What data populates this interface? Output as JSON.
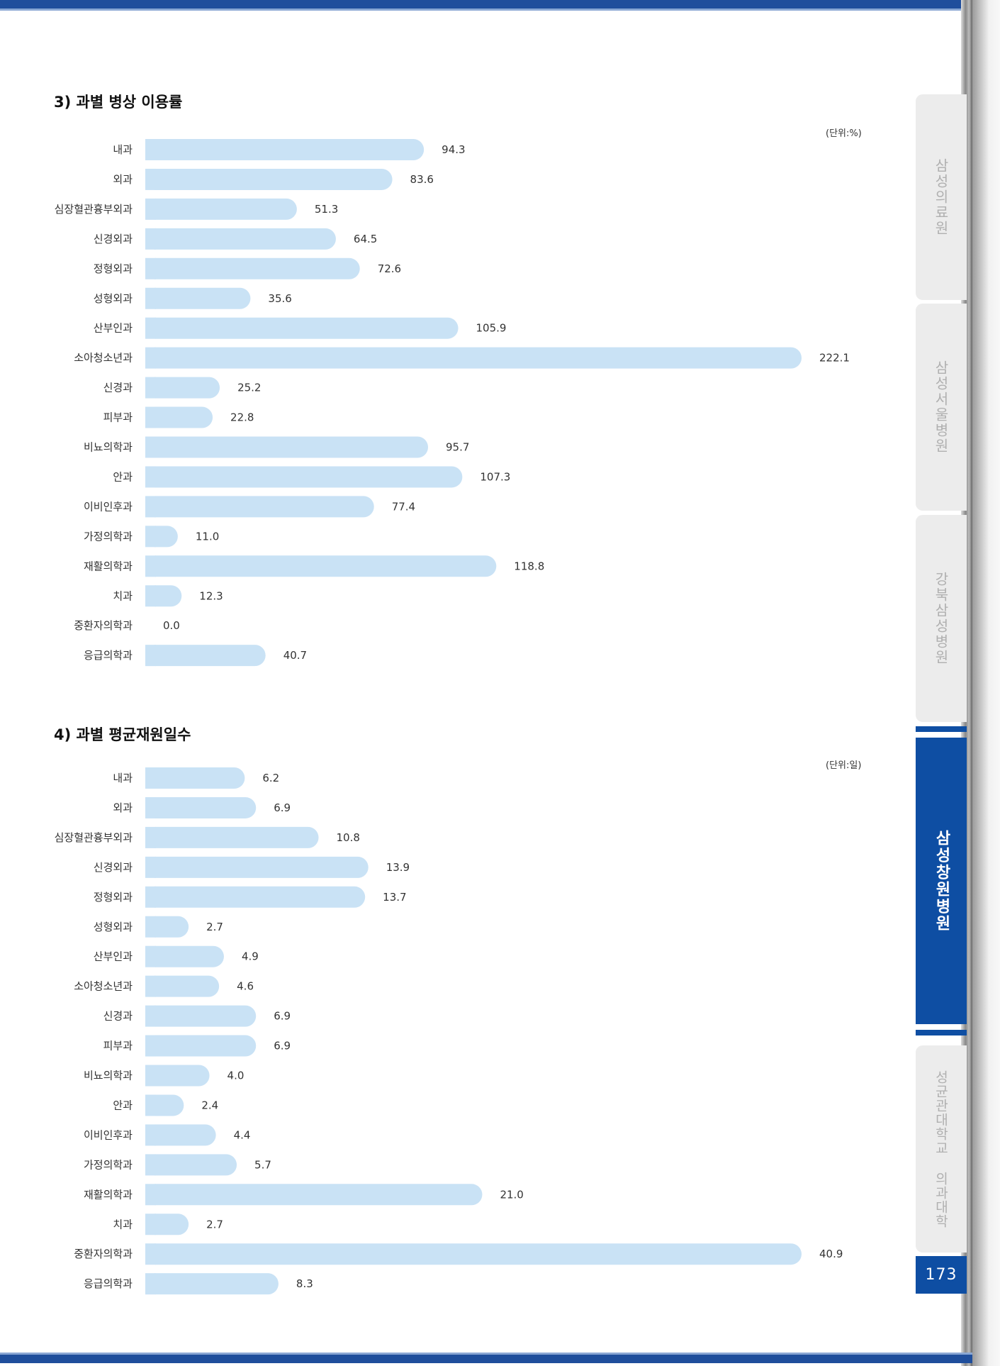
{
  "section1": {
    "title": "3) 과별 병상 이용률",
    "unit": "(단위:%)"
  },
  "section2": {
    "title": "4) 과별 평균재원일수",
    "unit": "(단위:일)"
  },
  "chart_data": [
    {
      "type": "bar",
      "orientation": "horizontal",
      "title": "3) 과별 병상 이용률",
      "unit": "(단위:%)",
      "categories": [
        "내과",
        "외과",
        "심장혈관흉부외과",
        "신경외과",
        "정형외과",
        "성형외과",
        "산부인과",
        "소아청소년과",
        "신경과",
        "피부과",
        "비뇨의학과",
        "안과",
        "이비인후과",
        "가정의학과",
        "재활의학과",
        "치과",
        "중환자의학과",
        "응급의학과"
      ],
      "values": [
        94.3,
        83.6,
        51.3,
        64.5,
        72.6,
        35.6,
        105.9,
        222.1,
        25.2,
        22.8,
        95.7,
        107.3,
        77.4,
        11.0,
        118.8,
        12.3,
        0.0,
        40.7
      ],
      "value_labels": [
        "94.3",
        "83.6",
        "51.3",
        "64.5",
        "72.6",
        "35.6",
        "105.9",
        "222.1",
        "25.2",
        "22.8",
        "95.7",
        "107.3",
        "77.4",
        "11.0",
        "118.8",
        "12.3",
        "0.0",
        "40.7"
      ],
      "xlim": [
        0,
        222.1
      ],
      "bar_color": "#c9e2f5"
    },
    {
      "type": "bar",
      "orientation": "horizontal",
      "title": "4) 과별 평균재원일수",
      "unit": "(단위:일)",
      "categories": [
        "내과",
        "외과",
        "심장혈관흉부외과",
        "신경외과",
        "정형외과",
        "성형외과",
        "산부인과",
        "소아청소년과",
        "신경과",
        "피부과",
        "비뇨의학과",
        "안과",
        "이비인후과",
        "가정의학과",
        "재활의학과",
        "치과",
        "중환자의학과",
        "응급의학과"
      ],
      "values": [
        6.2,
        6.9,
        10.8,
        13.9,
        13.7,
        2.7,
        4.9,
        4.6,
        6.9,
        6.9,
        4.0,
        2.4,
        4.4,
        5.7,
        21.0,
        2.7,
        40.9,
        8.3
      ],
      "value_labels": [
        "6.2",
        "6.9",
        "10.8",
        "13.9",
        "13.7",
        "2.7",
        "4.9",
        "4.6",
        "6.9",
        "6.9",
        "4.0",
        "2.4",
        "4.4",
        "5.7",
        "21.0",
        "2.7",
        "40.9",
        "8.3"
      ],
      "xlim": [
        0,
        40.9
      ],
      "bar_color": "#c9e2f5"
    }
  ],
  "side_tabs": [
    {
      "label": "삼성의료원",
      "active": false
    },
    {
      "label": "삼성서울병원",
      "active": false
    },
    {
      "label": "강북삼성병원",
      "active": false
    },
    {
      "label": "삼성창원병원",
      "active": true
    },
    {
      "label": "성균관대학교 의과대학",
      "active": false
    }
  ],
  "page_number": "173",
  "colors": {
    "accent": "#0e4ea3",
    "bar": "#c9e2f5",
    "border": "#1f4e9c"
  }
}
